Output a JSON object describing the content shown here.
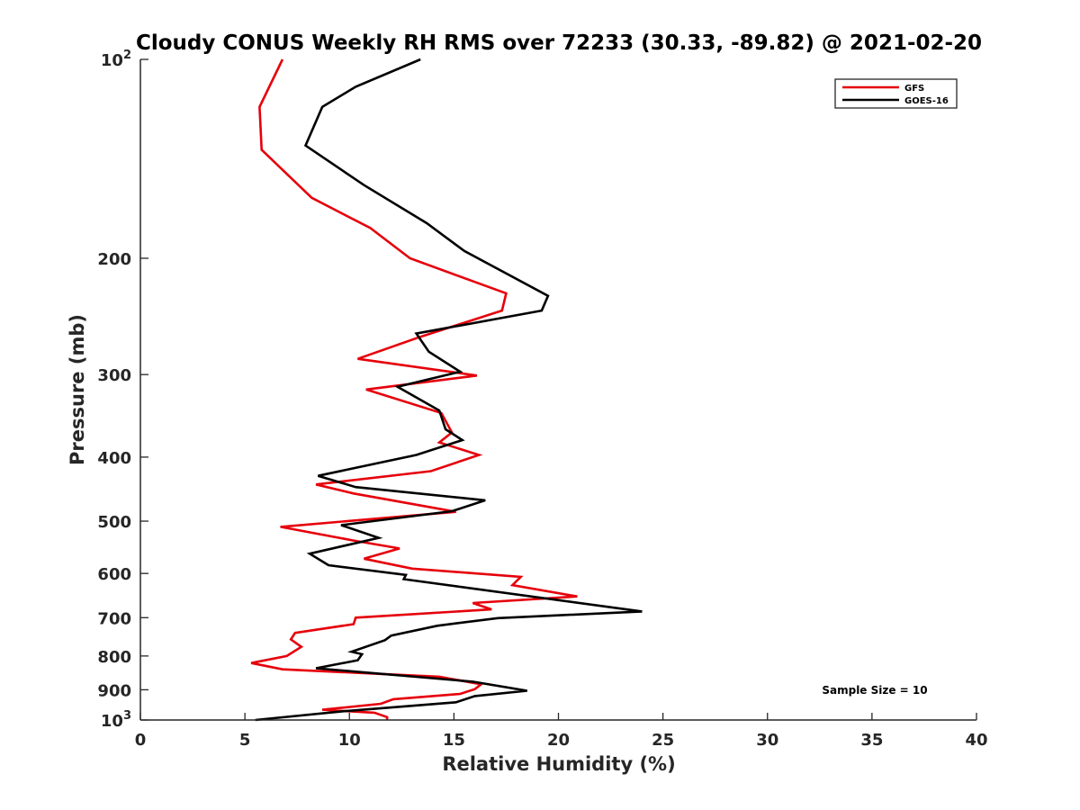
{
  "chart_data": {
    "type": "line",
    "title": "Cloudy CONUS Weekly RH RMS over 72233 (30.33, -89.82) @ 2021-02-20",
    "xlabel": "Relative Humidity (%)",
    "ylabel": "Pressure (mb)",
    "xlim": [
      0,
      40
    ],
    "ylim": [
      100,
      1000
    ],
    "yscale": "log",
    "y_reversed": true,
    "x_ticks": [
      0,
      5,
      10,
      15,
      20,
      25,
      30,
      35,
      40
    ],
    "x_tick_labels": [
      "0",
      "5",
      "10",
      "15",
      "20",
      "25",
      "30",
      "35",
      "40"
    ],
    "y_ticks": [
      100,
      200,
      300,
      400,
      500,
      600,
      700,
      800,
      900,
      1000
    ],
    "y_tick_labels": [
      {
        "base": "10",
        "exp": "2"
      },
      {
        "base": "200",
        "exp": ""
      },
      {
        "base": "300",
        "exp": ""
      },
      {
        "base": "400",
        "exp": ""
      },
      {
        "base": "500",
        "exp": ""
      },
      {
        "base": "600",
        "exp": ""
      },
      {
        "base": "700",
        "exp": ""
      },
      {
        "base": "800",
        "exp": ""
      },
      {
        "base": "900",
        "exp": ""
      },
      {
        "base": "10",
        "exp": "3"
      }
    ],
    "grid": false,
    "legend_position": "top-right",
    "annotation": "Sample Size = 10",
    "series": [
      {
        "name": "GFS",
        "color": "#e6000b",
        "points": [
          [
            6.8,
            100
          ],
          [
            5.7,
            118
          ],
          [
            5.8,
            137
          ],
          [
            8.2,
            162
          ],
          [
            11.0,
            180
          ],
          [
            12.9,
            200
          ],
          [
            17.5,
            226
          ],
          [
            17.3,
            240
          ],
          [
            13.4,
            263
          ],
          [
            10.4,
            284
          ],
          [
            16.1,
            301
          ],
          [
            10.8,
            316
          ],
          [
            14.4,
            343
          ],
          [
            14.9,
            367
          ],
          [
            14.3,
            380
          ],
          [
            16.2,
            397
          ],
          [
            13.9,
            420
          ],
          [
            8.4,
            440
          ],
          [
            10.2,
            454
          ],
          [
            15.1,
            484
          ],
          [
            6.7,
            510
          ],
          [
            10.2,
            535
          ],
          [
            12.4,
            550
          ],
          [
            10.7,
            570
          ],
          [
            13.0,
            590
          ],
          [
            18.2,
            607
          ],
          [
            17.8,
            625
          ],
          [
            20.9,
            650
          ],
          [
            15.9,
            665
          ],
          [
            16.8,
            680
          ],
          [
            10.3,
            700
          ],
          [
            10.2,
            716
          ],
          [
            7.4,
            738
          ],
          [
            7.2,
            755
          ],
          [
            7.7,
            775
          ],
          [
            7.0,
            800
          ],
          [
            5.3,
            820
          ],
          [
            6.8,
            838
          ],
          [
            14.3,
            860
          ],
          [
            16.3,
            883
          ],
          [
            16.0,
            898
          ],
          [
            15.3,
            913
          ],
          [
            12.1,
            930
          ],
          [
            11.5,
            945
          ],
          [
            8.7,
            965
          ],
          [
            11.2,
            975
          ],
          [
            11.8,
            990
          ],
          [
            11.8,
            1000
          ]
        ]
      },
      {
        "name": "GOES-16",
        "color": "#000000",
        "points": [
          [
            13.4,
            100
          ],
          [
            10.3,
            110
          ],
          [
            8.7,
            118
          ],
          [
            7.9,
            135
          ],
          [
            10.7,
            155
          ],
          [
            13.7,
            177
          ],
          [
            15.5,
            195
          ],
          [
            19.5,
            228
          ],
          [
            19.2,
            240
          ],
          [
            13.2,
            260
          ],
          [
            13.8,
            277
          ],
          [
            15.3,
            297
          ],
          [
            12.3,
            313
          ],
          [
            14.3,
            340
          ],
          [
            14.6,
            363
          ],
          [
            15.4,
            377
          ],
          [
            13.2,
            397
          ],
          [
            8.5,
            427
          ],
          [
            10.3,
            444
          ],
          [
            16.5,
            465
          ],
          [
            14.9,
            483
          ],
          [
            9.6,
            507
          ],
          [
            11.4,
            530
          ],
          [
            8.1,
            560
          ],
          [
            9.0,
            583
          ],
          [
            12.7,
            603
          ],
          [
            12.6,
            612
          ],
          [
            24.0,
            685
          ],
          [
            17.1,
            701
          ],
          [
            14.2,
            720
          ],
          [
            12.0,
            745
          ],
          [
            11.7,
            757
          ],
          [
            10.1,
            788
          ],
          [
            10.6,
            795
          ],
          [
            10.4,
            812
          ],
          [
            8.4,
            835
          ],
          [
            15.9,
            875
          ],
          [
            18.5,
            903
          ],
          [
            16.0,
            920
          ],
          [
            15.1,
            940
          ],
          [
            9.7,
            970
          ],
          [
            5.5,
            1000
          ]
        ]
      }
    ]
  }
}
